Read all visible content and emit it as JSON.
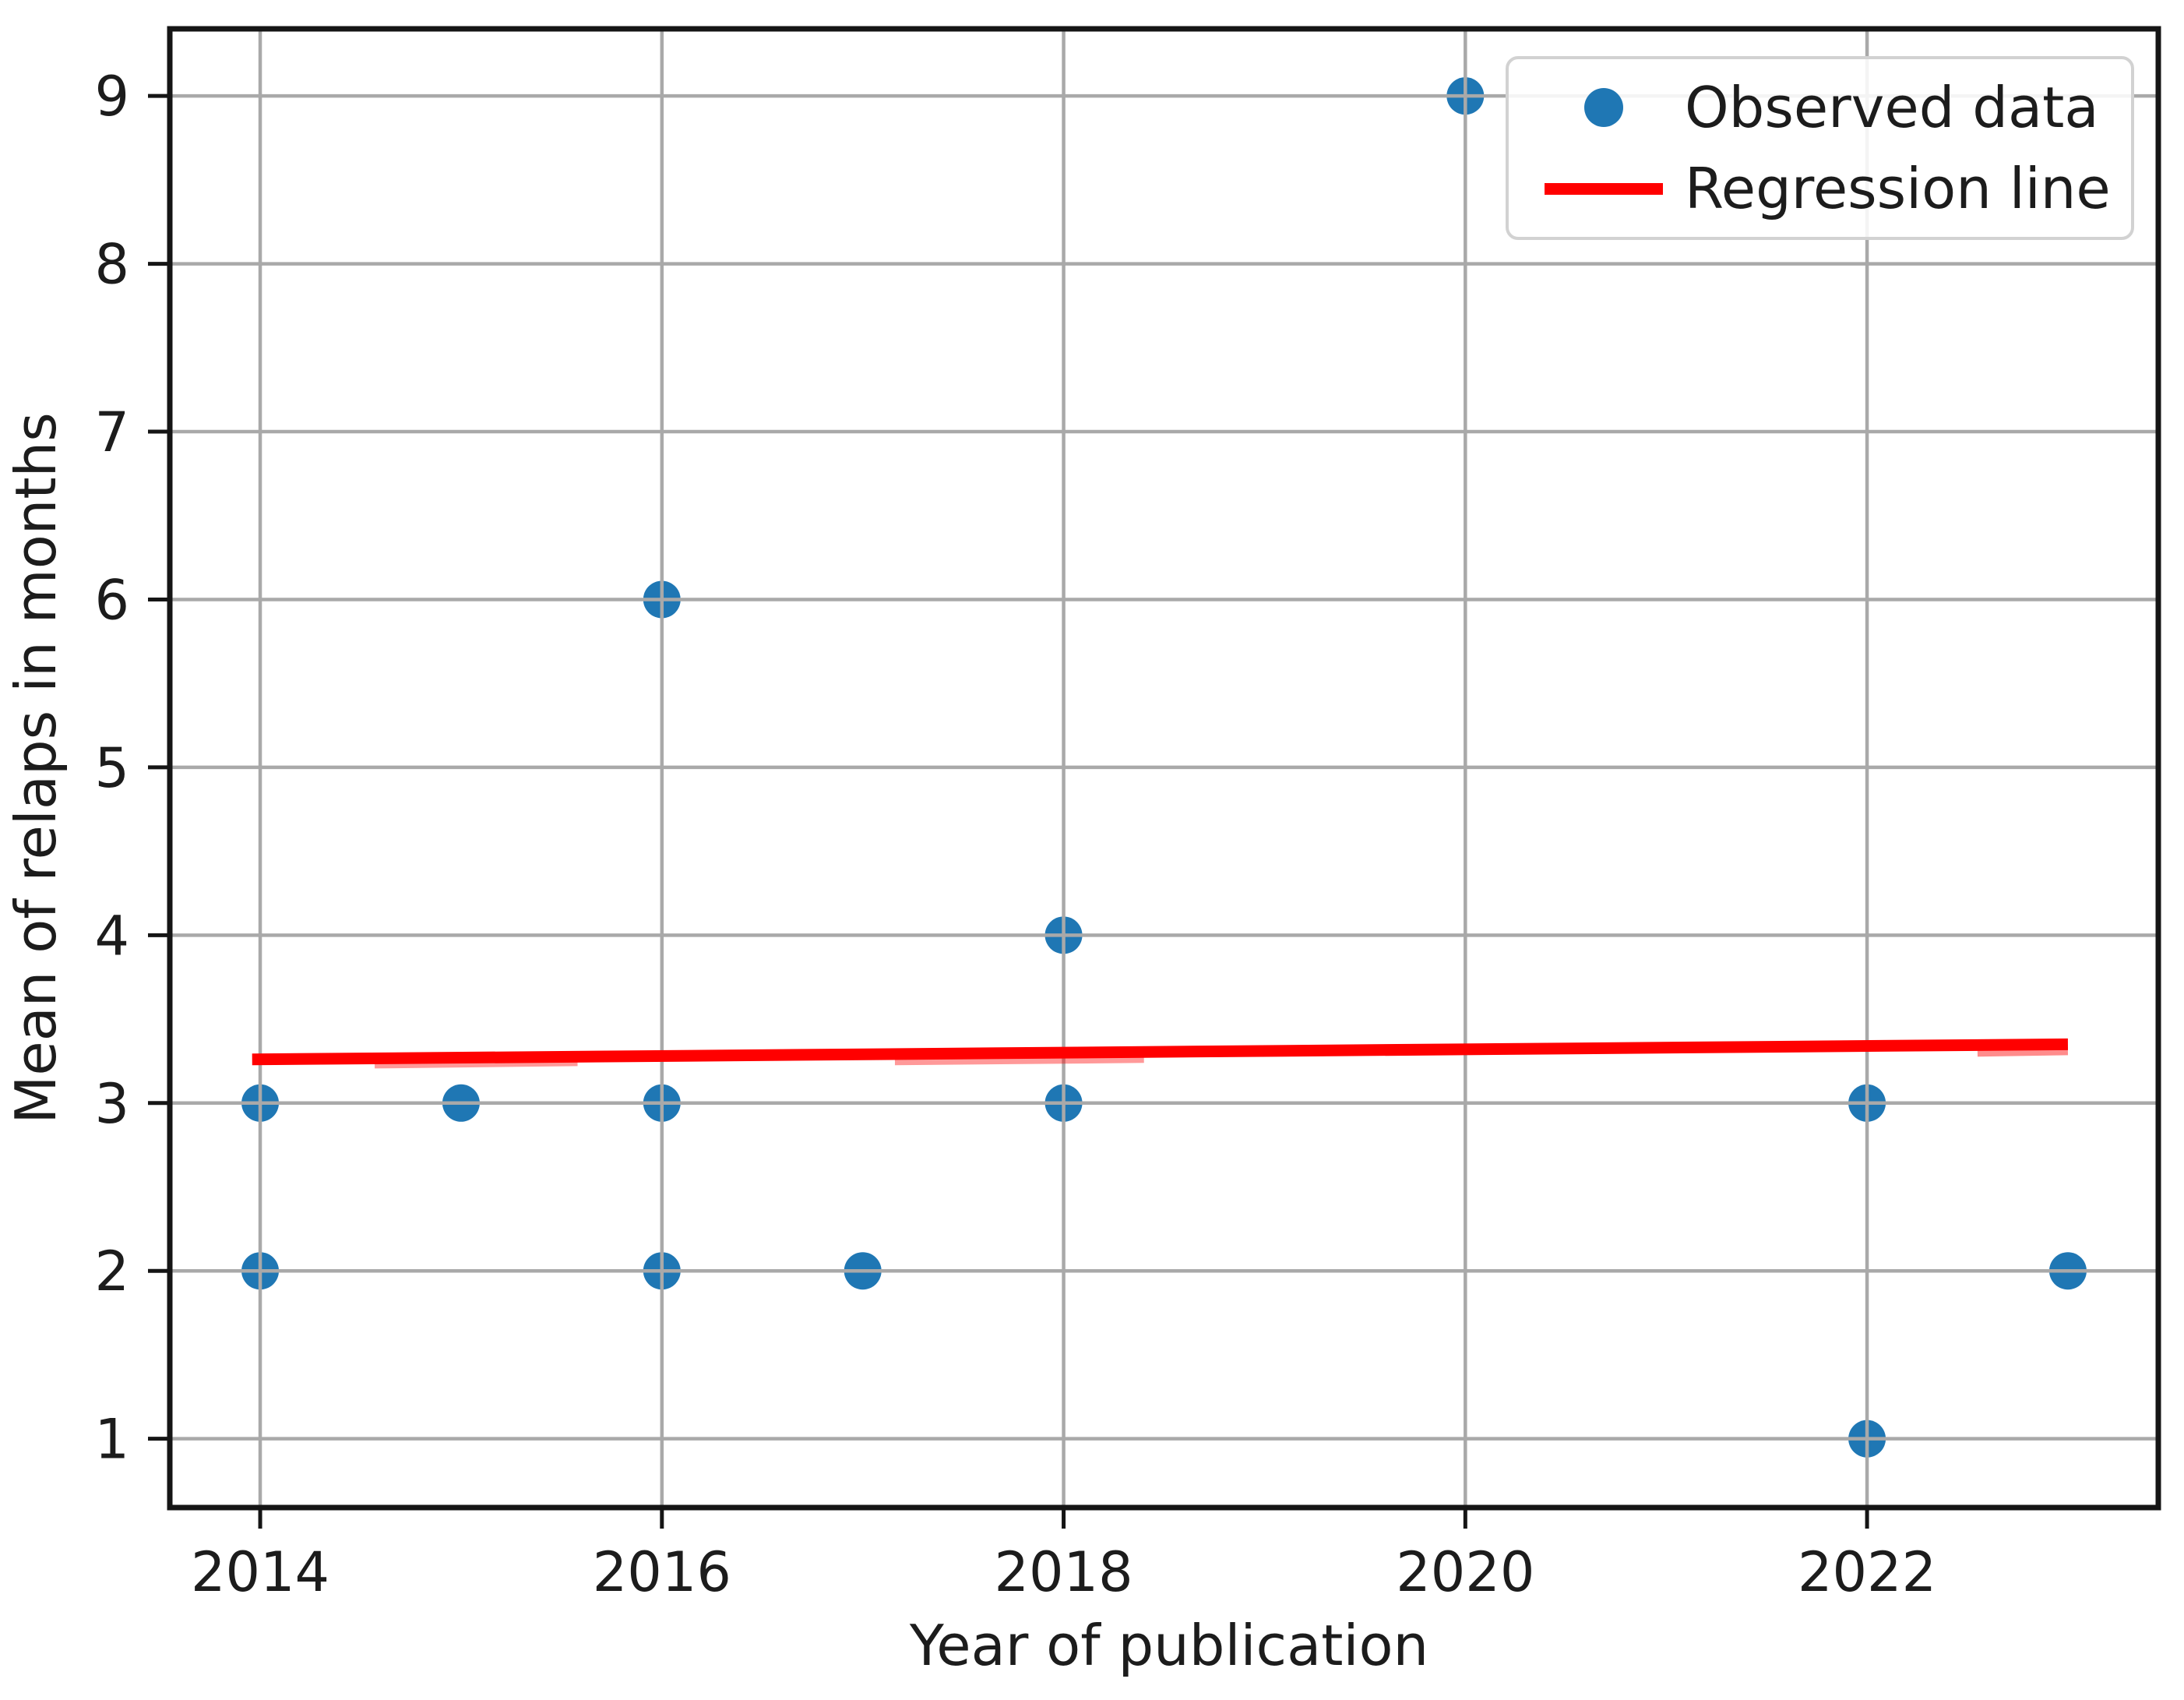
{
  "chart_data": {
    "type": "scatter",
    "title": "",
    "xlabel": "Year of publication",
    "ylabel": "Mean of relaps in months",
    "x_ticks": [
      2014,
      2016,
      2018,
      2020,
      2022
    ],
    "y_ticks": [
      1,
      2,
      3,
      4,
      5,
      6,
      7,
      8,
      9
    ],
    "xlim": [
      2013.55,
      2023.45
    ],
    "ylim": [
      0.59,
      9.4
    ],
    "grid": true,
    "legend_position": "upper right",
    "series": [
      {
        "name": "Observed data",
        "kind": "scatter",
        "color": "#1f77b4",
        "points": [
          [
            2014,
            2
          ],
          [
            2014,
            3
          ],
          [
            2015,
            3
          ],
          [
            2016,
            2
          ],
          [
            2016,
            3
          ],
          [
            2016,
            6
          ],
          [
            2017,
            2
          ],
          [
            2018,
            3
          ],
          [
            2018,
            4
          ],
          [
            2020,
            9
          ],
          [
            2022,
            1
          ],
          [
            2022,
            3
          ],
          [
            2023,
            2
          ]
        ]
      },
      {
        "name": "Regression line",
        "kind": "line",
        "color": "#ff0000",
        "points": [
          [
            2013.96,
            3.26
          ],
          [
            2023.0,
            3.35
          ]
        ]
      }
    ],
    "regression_faint_segments": [
      {
        "x1": 2014.57,
        "y1": 3.227,
        "x2": 2015.58,
        "y2": 3.241,
        "opacity": 0.4
      },
      {
        "x1": 2017.16,
        "y1": 3.246,
        "x2": 2018.4,
        "y2": 3.26,
        "opacity": 0.4
      },
      {
        "x1": 2022.55,
        "y1": 3.297,
        "x2": 2023.0,
        "y2": 3.306,
        "opacity": 0.45
      }
    ]
  },
  "styles": {
    "background": "#ffffff",
    "grid_color": "#a9a9a9",
    "spine_color": "#151515",
    "tick_color": "#151515",
    "text_color": "#1c1c1c",
    "scatter_color": "#1f77b4",
    "regression_color": "#ff0000"
  }
}
